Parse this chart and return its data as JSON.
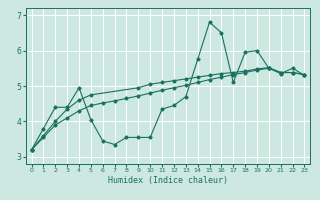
{
  "title": "",
  "xlabel": "Humidex (Indice chaleur)",
  "xlim": [
    -0.5,
    23.5
  ],
  "ylim": [
    2.8,
    7.2
  ],
  "yticks": [
    3,
    4,
    5,
    6,
    7
  ],
  "xticks": [
    0,
    1,
    2,
    3,
    4,
    5,
    6,
    7,
    8,
    9,
    10,
    11,
    12,
    13,
    14,
    15,
    16,
    17,
    18,
    19,
    20,
    21,
    22,
    23
  ],
  "bg_color": "#cce8e0",
  "line_color": "#1a7060",
  "grid_color": "#ffffff",
  "line1_x": [
    0,
    1,
    2,
    3,
    4,
    5,
    6,
    7,
    8,
    9,
    10,
    11,
    12,
    13,
    14,
    15,
    16,
    17,
    18,
    19,
    20,
    21,
    22,
    23
  ],
  "line1_y": [
    3.2,
    3.8,
    4.4,
    4.4,
    4.95,
    4.05,
    3.45,
    3.35,
    3.55,
    3.55,
    3.55,
    4.35,
    4.45,
    4.7,
    5.75,
    6.8,
    6.5,
    5.1,
    5.95,
    6.0,
    5.5,
    5.35,
    5.5,
    5.3
  ],
  "line2_x": [
    0,
    1,
    2,
    3,
    4,
    5,
    9,
    10,
    11,
    12,
    13,
    14,
    15,
    16,
    17,
    18,
    19,
    20,
    21,
    22,
    23
  ],
  "line2_y": [
    3.2,
    3.6,
    4.0,
    4.35,
    4.6,
    4.75,
    4.95,
    5.05,
    5.1,
    5.15,
    5.2,
    5.25,
    5.3,
    5.35,
    5.38,
    5.42,
    5.48,
    5.52,
    5.38,
    5.38,
    5.32
  ],
  "line3_x": [
    0,
    1,
    2,
    3,
    4,
    5,
    6,
    7,
    8,
    9,
    10,
    11,
    12,
    13,
    14,
    15,
    16,
    17,
    18,
    19,
    20,
    21,
    22,
    23
  ],
  "line3_y": [
    3.2,
    3.55,
    3.9,
    4.1,
    4.3,
    4.45,
    4.52,
    4.58,
    4.65,
    4.72,
    4.8,
    4.88,
    4.95,
    5.02,
    5.1,
    5.18,
    5.25,
    5.32,
    5.38,
    5.45,
    5.5,
    5.38,
    5.38,
    5.32
  ]
}
